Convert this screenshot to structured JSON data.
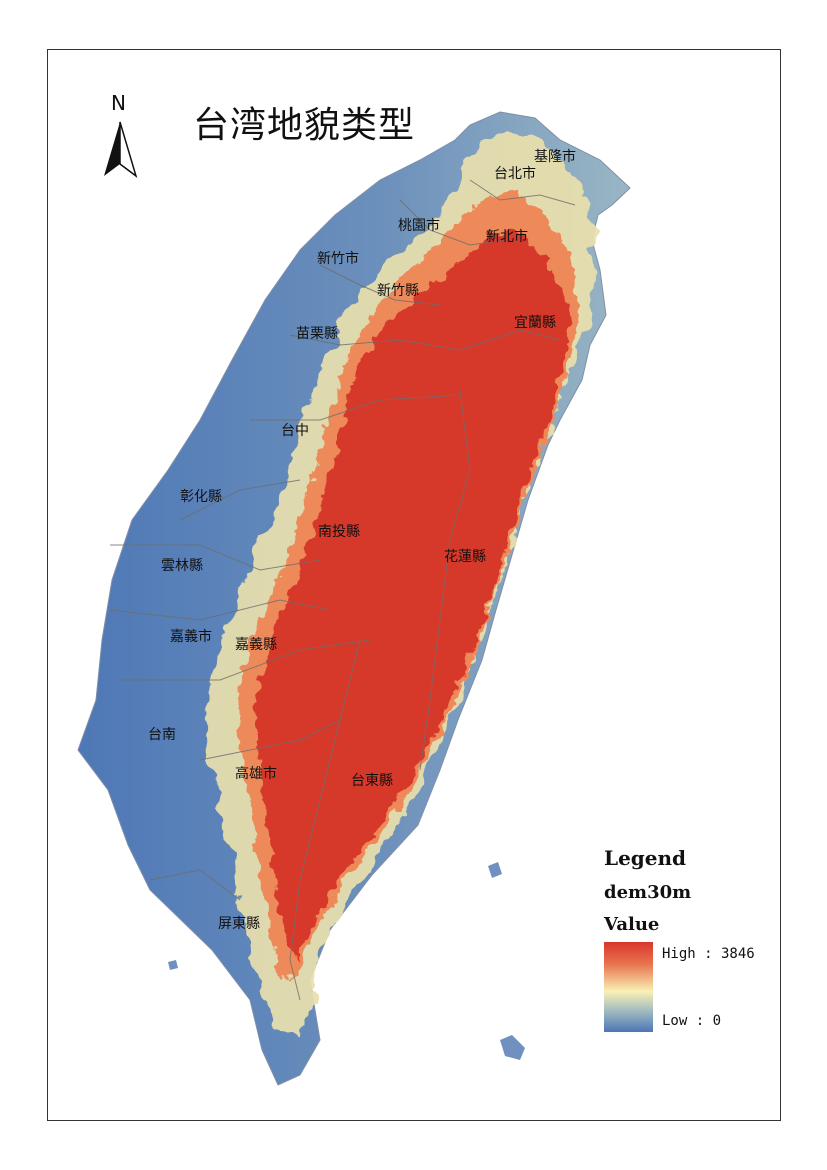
{
  "title": "台湾地貌类型",
  "north_arrow": {
    "label": "N",
    "icon": "north-arrow-icon"
  },
  "cities": [
    {
      "name": "基隆市"
    },
    {
      "name": "台北市"
    },
    {
      "name": "桃園市"
    },
    {
      "name": "新北市"
    },
    {
      "name": "新竹市"
    },
    {
      "name": "新竹縣"
    },
    {
      "name": "苗栗縣"
    },
    {
      "name": "宜蘭縣"
    },
    {
      "name": "台中"
    },
    {
      "name": "彰化縣"
    },
    {
      "name": "南投縣"
    },
    {
      "name": "花蓮縣"
    },
    {
      "name": "雲林縣"
    },
    {
      "name": "嘉義市"
    },
    {
      "name": "嘉義縣"
    },
    {
      "name": "台南"
    },
    {
      "name": "高雄市"
    },
    {
      "name": "台東縣"
    },
    {
      "name": "屏東縣"
    }
  ],
  "legend": {
    "title": "Legend",
    "layer": "dem30m",
    "field": "Value",
    "high_label": "High : 3846",
    "low_label": "Low : 0",
    "colors": {
      "high": "#d7372c",
      "mid": "#f8f1b5",
      "low": "#4a76b6"
    }
  }
}
